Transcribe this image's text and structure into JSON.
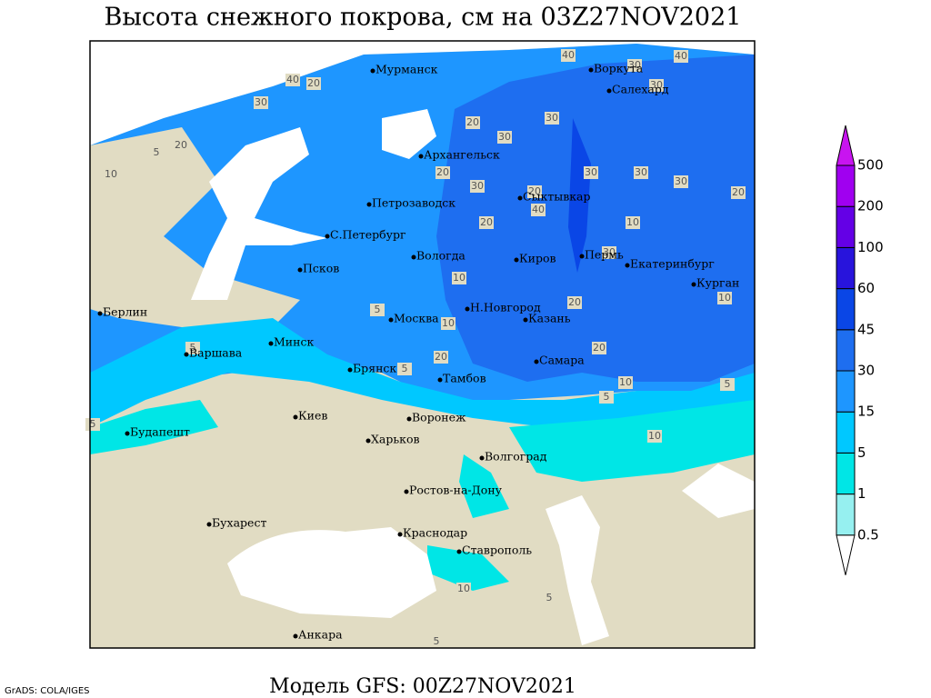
{
  "title": "Высота снежного покрова, см на 03Z27NOV2021",
  "footer": "Модель GFS: 00Z27NOV2021",
  "credit": "GrADS: COLA/IGES",
  "colorbar": {
    "levels": [
      0.5,
      1,
      5,
      15,
      30,
      45,
      60,
      100,
      200,
      500
    ],
    "colors": [
      "#ffffff",
      "#96f0f0",
      "#00e6e6",
      "#00c8ff",
      "#1e96ff",
      "#1e6ef0",
      "#0a46e6",
      "#2814dc",
      "#6400e6",
      "#a000f0",
      "#c814f0"
    ]
  },
  "cities": [
    "Мурманск",
    "Воркута",
    "Салехард",
    "Архангельск",
    "Сыктывкар",
    "Петрозаводск",
    "С.Петербург",
    "Псков",
    "Вологда",
    "Киров",
    "Пермь",
    "Екатеринбург",
    "Курган",
    "Берлин",
    "Н.Новгород",
    "Москва",
    "Казань",
    "Минск",
    "Варшава",
    "Самара",
    "Брянск",
    "Тамбов",
    "Воронеж",
    "Киев",
    "Будапешт",
    "Харьков",
    "Волгоград",
    "Ростов-на-Дону",
    "Бухарест",
    "Краснодар",
    "Ставрополь",
    "Анкара"
  ],
  "contour_labels": [
    40,
    20,
    30,
    20,
    40,
    30,
    20,
    5,
    10,
    30,
    20,
    30,
    30,
    30,
    40,
    20,
    10,
    30,
    20,
    30,
    20,
    10,
    5,
    10,
    20,
    20,
    5,
    10,
    5,
    5,
    10,
    20,
    5,
    10,
    10,
    5,
    5,
    5,
    40,
    30,
    30
  ]
}
